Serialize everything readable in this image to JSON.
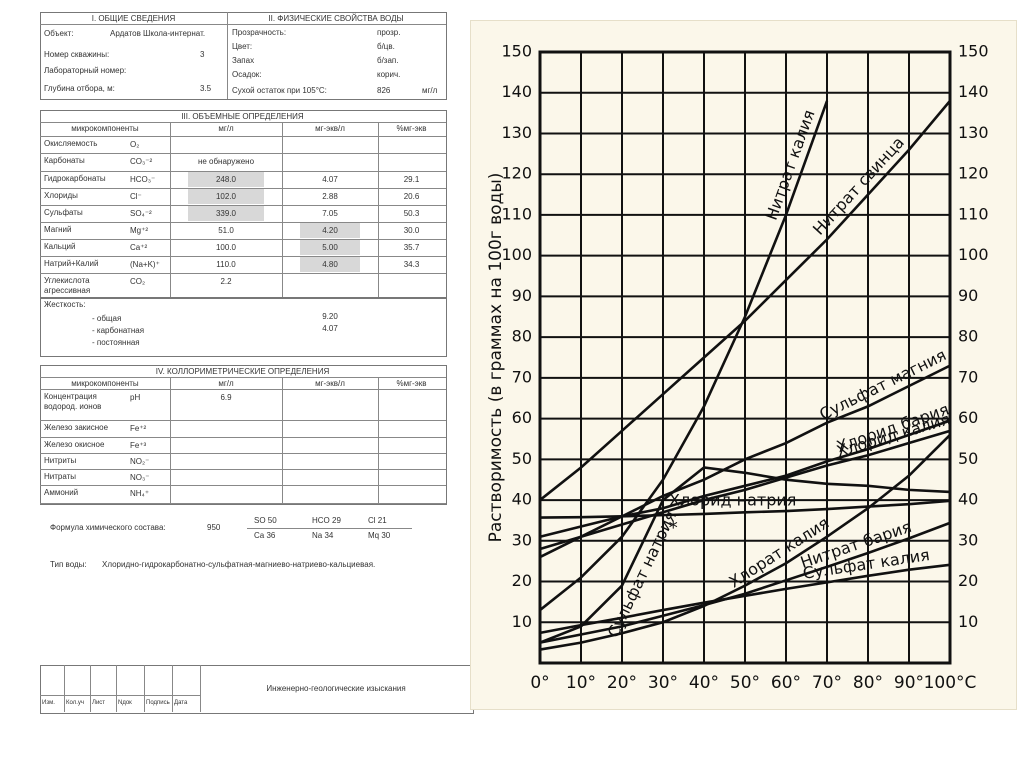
{
  "document": {
    "general": {
      "title": "I. ОБЩИЕ СВЕДЕНИЯ",
      "rows": [
        {
          "label": "Объект:",
          "value": "Ардатов Школа-интернат."
        },
        {
          "label": "Номер скважины:",
          "value": "3"
        },
        {
          "label": "Лабораторный номер:"
        },
        {
          "label": "Глубина отбора, м:",
          "value": "3.5"
        }
      ]
    },
    "physical": {
      "title": "II. ФИЗИЧЕСКИЕ СВОЙСТВА ВОДЫ",
      "rows": [
        {
          "label": "Прозрачность:",
          "value": "прозр."
        },
        {
          "label": "Цвет:",
          "value": "б/цв."
        },
        {
          "label": "Запах",
          "value": "б/зап."
        },
        {
          "label": "Осадок:",
          "value": "корич."
        },
        {
          "label": "Сухой остаток при 105°С:",
          "value": "826",
          "unit": "мг/л"
        }
      ]
    },
    "volumetric": {
      "title": "III. ОБЪЕМНЫЕ ОПРЕДЕЛЕНИЯ",
      "header": [
        "микрокомпоненты",
        "мг/л",
        "мг-экв/л",
        "%мг-экв"
      ],
      "rows": [
        {
          "name": "Окисляемость",
          "formula": "O₂"
        },
        {
          "name": "Карбонаты",
          "formula": "CO₃⁻²",
          "mg_l": "не обнаружено"
        },
        {
          "name": "Гидрокарбонаты",
          "formula": "HCO₃⁻",
          "mg_l": "248.0",
          "mg_eq_l": "4.07",
          "percent": "29.1"
        },
        {
          "name": "Хлориды",
          "formula": "Cl⁻",
          "mg_l": "102.0",
          "mg_eq_l": "2.88",
          "percent": "20.6"
        },
        {
          "name": "Сульфаты",
          "formula": "SO₄⁻²",
          "mg_l": "339.0",
          "mg_eq_l": "7.05",
          "percent": "50.3"
        },
        {
          "name": "Магний",
          "formula": "Mg⁺²",
          "mg_l": "51.0",
          "mg_eq_l": "4.20",
          "percent": "30.0"
        },
        {
          "name": "Кальций",
          "formula": "Ca⁺²",
          "mg_l": "100.0",
          "mg_eq_l": "5.00",
          "percent": "35.7"
        },
        {
          "name": "Натрий+Калий",
          "formula": "(Na+K)⁺",
          "mg_l": "110.0",
          "mg_eq_l": "4.80",
          "percent": "34.3"
        },
        {
          "name": "Углекислота агрессивная",
          "formula": "CO₂",
          "mg_l": "2.2"
        }
      ],
      "hardness": {
        "label": "Жесткость:",
        "rows": [
          {
            "name": "- общая",
            "value": "9.20"
          },
          {
            "name": "- карбонатная",
            "value": "4.07"
          },
          {
            "name": "- постоянная"
          }
        ]
      }
    },
    "colorimetric": {
      "title": "IV. КОЛЛОРИМЕТРИЧЕСКИЕ ОПРЕДЕЛЕНИЯ",
      "header": [
        "микрокомпоненты",
        "мг/л",
        "мг-экв/л",
        "%мг-экв"
      ],
      "rows": [
        {
          "name": "Концентрация водород. ионов",
          "formula": "pH",
          "mg_l": "6.9"
        },
        {
          "name": "Железо закисное",
          "formula": "Fe⁺²"
        },
        {
          "name": "Железо окисное",
          "formula": "Fe⁺³"
        },
        {
          "name": "Нитриты",
          "formula": "NO₂⁻"
        },
        {
          "name": "Нитраты",
          "formula": "NO₃⁻"
        },
        {
          "name": "Аммоний",
          "formula": "NH₄⁺"
        }
      ]
    },
    "formula": {
      "label": "Формула химического состава:",
      "total": "950",
      "numerator": [
        "SO 50",
        "HCO 29",
        "Cl 21"
      ],
      "denominator": [
        "Ca 36",
        "Na 34",
        "Mq 30"
      ]
    },
    "water_type": {
      "label": "Тип воды:",
      "value": "Хлоридно-гидрокарбонатно-сульфатная-магниево-натриево-кальциевая."
    },
    "stamp": {
      "title": "Инженерно-геологические изыскания",
      "columns": [
        "Изм.",
        "Кол.уч",
        "Лист",
        "Nдок",
        "Подпись",
        "Дата"
      ]
    }
  },
  "chart_data": {
    "type": "line",
    "y_label": "Растворимость (в граммах на 100г воды)",
    "annotation": "*",
    "x": [
      0,
      10,
      20,
      30,
      40,
      50,
      60,
      70,
      80,
      90,
      100
    ],
    "xlim": [
      0,
      100
    ],
    "xticks": [
      {
        "value": 0,
        "label": "0°"
      },
      {
        "value": 10,
        "label": "10°"
      },
      {
        "value": 20,
        "label": "20°"
      },
      {
        "value": 30,
        "label": "30°"
      },
      {
        "value": 40,
        "label": "40°"
      },
      {
        "value": 50,
        "label": "50°"
      },
      {
        "value": 60,
        "label": "60°"
      },
      {
        "value": 70,
        "label": "70°"
      },
      {
        "value": 80,
        "label": "80°"
      },
      {
        "value": 90,
        "label": "90°"
      },
      {
        "value": 100,
        "label": "100°C"
      }
    ],
    "ylim": [
      0,
      150
    ],
    "yticks": [
      10,
      20,
      30,
      40,
      50,
      60,
      70,
      80,
      90,
      100,
      110,
      120,
      130,
      140,
      150
    ],
    "grid": true,
    "series": [
      {
        "name": "Нитрат калия",
        "color": "#111111",
        "values": [
          13,
          21,
          31,
          45,
          63,
          85,
          110,
          138,
          null,
          null,
          null
        ]
      },
      {
        "name": "Нитрат свинца",
        "color": "#111111",
        "values": [
          40,
          48,
          57,
          66,
          75,
          84,
          94,
          104,
          115,
          126,
          138
        ]
      },
      {
        "name": "Сульфат магния",
        "color": "#111111",
        "values": [
          26,
          31,
          36,
          41,
          45,
          50,
          54,
          59,
          63,
          68,
          73
        ]
      },
      {
        "name": "Хлорид бария",
        "color": "#111111",
        "values": [
          31,
          33.5,
          36,
          38,
          41,
          43.5,
          46,
          49.5,
          52.5,
          56,
          59.5
        ]
      },
      {
        "name": "Хлорид калия",
        "color": "#111111",
        "values": [
          28,
          31,
          34,
          37,
          40,
          42.5,
          45.5,
          48.5,
          51,
          54,
          57
        ]
      },
      {
        "name": "Хлорид натрия",
        "color": "#111111",
        "values": [
          35.7,
          35.8,
          36,
          36.3,
          36.6,
          37,
          37.3,
          37.8,
          38.4,
          39,
          39.8
        ]
      },
      {
        "name": "Хлорат калия",
        "color": "#111111",
        "values": [
          3.3,
          5,
          7.3,
          10,
          14,
          19,
          24.5,
          31,
          38,
          46,
          56
        ]
      },
      {
        "name": "Нитрат бария",
        "color": "#111111",
        "values": [
          5,
          7,
          9,
          11.6,
          14.2,
          17,
          20.3,
          23.6,
          27,
          30.6,
          34.4
        ]
      },
      {
        "name": "Сульфат калия",
        "color": "#111111",
        "values": [
          7.4,
          9.3,
          11.1,
          13,
          14.8,
          16.5,
          18.2,
          19.8,
          21.4,
          22.9,
          24.1
        ]
      },
      {
        "name": "Сульфат натрия",
        "color": "#111111",
        "values": [
          5,
          9,
          19,
          40,
          48,
          46.7,
          45,
          44,
          43.5,
          42.5,
          42
        ]
      }
    ]
  }
}
